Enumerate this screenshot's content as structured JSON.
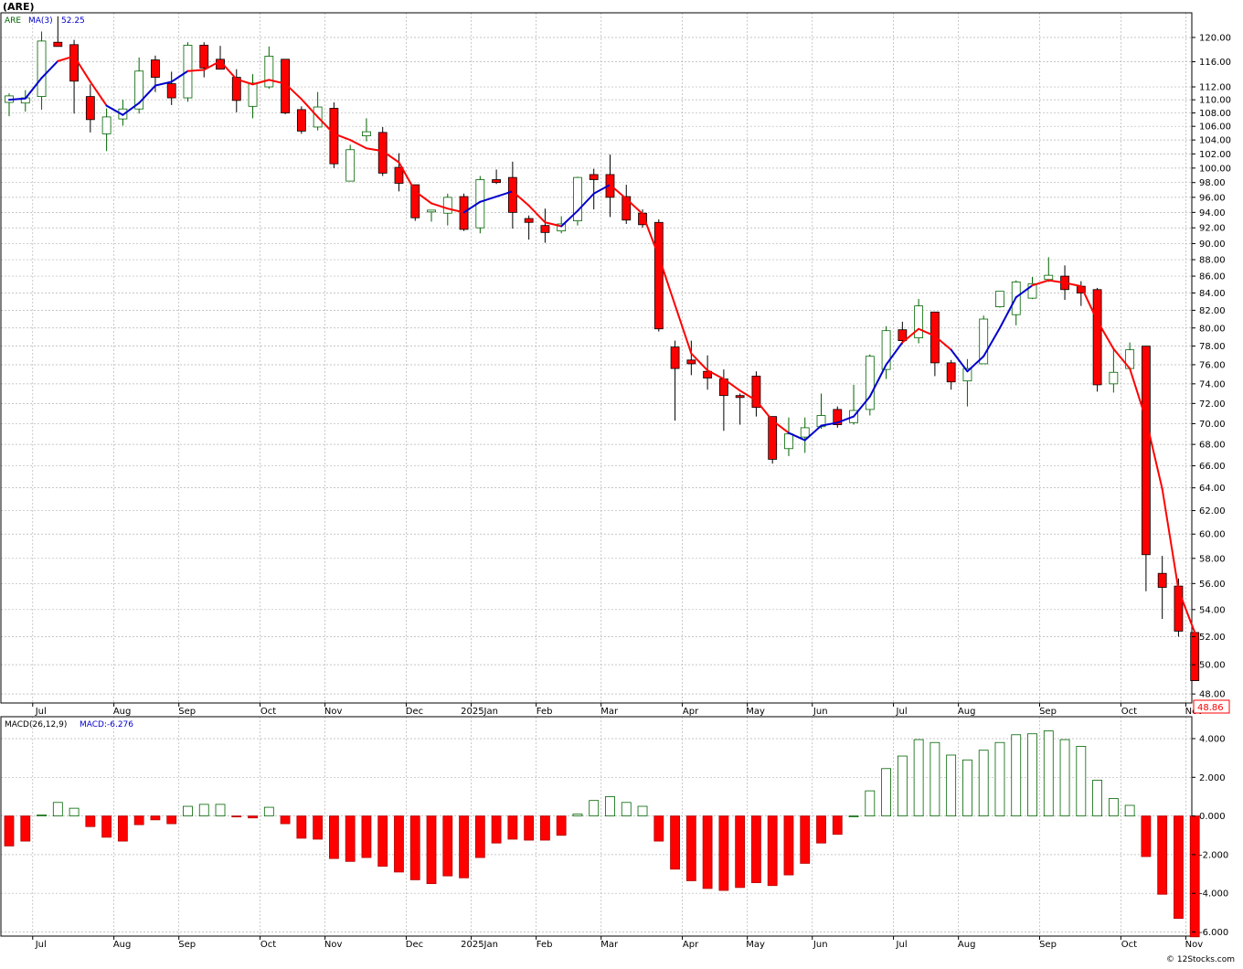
{
  "chart_title": "(ARE)",
  "legend": {
    "symbol": "ARE",
    "ma_label": "MA(3)",
    "ma_value": "52.25"
  },
  "macd_legend": {
    "label": "MACD(26,12,9)",
    "value_label": "MACD:",
    "value": "-6.276"
  },
  "last_price": "48.86",
  "copyright": "© 12Stocks.com",
  "colors": {
    "up": "#006400",
    "down": "#ff0000",
    "ma_up": "#0000cc",
    "ma_down": "#ff0000",
    "grid": "#b4b4b4"
  },
  "chart_data": [
    {
      "type": "candlestick",
      "title": "",
      "price_axis": [
        48,
        50,
        52,
        54,
        56,
        58,
        60,
        62,
        64,
        66,
        68,
        70,
        72,
        74,
        76,
        78,
        80,
        82,
        84,
        86,
        88,
        90,
        92,
        94,
        96,
        98,
        100,
        102,
        104,
        106,
        108,
        110,
        112,
        116,
        120
      ],
      "month_labels": [
        "Jul",
        "Aug",
        "Sep",
        "Oct",
        "Nov",
        "Dec",
        "2025Jan",
        "Feb",
        "Mar",
        "Apr",
        "May",
        "Jun",
        "Jul",
        "Aug",
        "Sep",
        "Oct",
        "Nov"
      ],
      "month_start_index": [
        1,
        6,
        10,
        15,
        19,
        24,
        28,
        32,
        36,
        41,
        45,
        49,
        54,
        58,
        63,
        68,
        72
      ],
      "candles": [
        {
          "o": 109.6,
          "h": 111.0,
          "l": 107.5,
          "c": 110.6
        },
        {
          "o": 109.5,
          "h": 111.5,
          "l": 108.2,
          "c": 110.3
        },
        {
          "o": 110.5,
          "h": 121.0,
          "l": 108.5,
          "c": 119.4
        },
        {
          "o": 119.2,
          "h": 123.6,
          "l": 118.6,
          "c": 118.5
        },
        {
          "o": 118.8,
          "h": 119.6,
          "l": 107.9,
          "c": 112.9
        },
        {
          "o": 110.5,
          "h": 112.4,
          "l": 105.1,
          "c": 107.0
        },
        {
          "o": 104.9,
          "h": 108.7,
          "l": 102.4,
          "c": 107.4
        },
        {
          "o": 107.1,
          "h": 110.0,
          "l": 106.1,
          "c": 108.6
        },
        {
          "o": 108.6,
          "h": 116.7,
          "l": 107.9,
          "c": 114.5
        },
        {
          "o": 116.3,
          "h": 117.0,
          "l": 111.2,
          "c": 113.5
        },
        {
          "o": 112.5,
          "h": 114.4,
          "l": 109.2,
          "c": 110.3
        },
        {
          "o": 110.3,
          "h": 119.2,
          "l": 109.7,
          "c": 118.7
        },
        {
          "o": 118.7,
          "h": 119.2,
          "l": 113.5,
          "c": 115.0
        },
        {
          "o": 116.4,
          "h": 118.6,
          "l": 114.8,
          "c": 114.8
        },
        {
          "o": 113.5,
          "h": 114.8,
          "l": 108.1,
          "c": 109.9
        },
        {
          "o": 109.0,
          "h": 114.0,
          "l": 107.2,
          "c": 112.6
        },
        {
          "o": 112.0,
          "h": 118.5,
          "l": 111.7,
          "c": 116.9
        },
        {
          "o": 116.4,
          "h": 116.3,
          "l": 107.8,
          "c": 108.0
        },
        {
          "o": 108.5,
          "h": 109.0,
          "l": 104.9,
          "c": 105.3
        },
        {
          "o": 105.9,
          "h": 111.2,
          "l": 105.4,
          "c": 108.9
        },
        {
          "o": 108.7,
          "h": 109.6,
          "l": 100.0,
          "c": 100.6
        },
        {
          "o": 98.2,
          "h": 103.3,
          "l": 98.2,
          "c": 102.6
        },
        {
          "o": 104.6,
          "h": 107.2,
          "l": 103.8,
          "c": 105.2
        },
        {
          "o": 105.1,
          "h": 105.9,
          "l": 98.9,
          "c": 99.3
        },
        {
          "o": 100.1,
          "h": 102.1,
          "l": 96.8,
          "c": 97.9
        },
        {
          "o": 97.7,
          "h": 97.5,
          "l": 92.9,
          "c": 93.3
        },
        {
          "o": 94.1,
          "h": 93.9,
          "l": 92.8,
          "c": 94.3
        },
        {
          "o": 93.9,
          "h": 96.5,
          "l": 92.3,
          "c": 96.0
        },
        {
          "o": 96.1,
          "h": 96.5,
          "l": 91.6,
          "c": 91.8
        },
        {
          "o": 92.0,
          "h": 98.9,
          "l": 91.3,
          "c": 98.4
        },
        {
          "o": 98.4,
          "h": 99.8,
          "l": 97.8,
          "c": 98.0
        },
        {
          "o": 98.7,
          "h": 100.9,
          "l": 91.9,
          "c": 94.0
        },
        {
          "o": 93.2,
          "h": 93.6,
          "l": 90.5,
          "c": 92.7
        },
        {
          "o": 92.3,
          "h": 94.5,
          "l": 90.1,
          "c": 91.4
        },
        {
          "o": 91.6,
          "h": 93.5,
          "l": 91.3,
          "c": 92.5
        },
        {
          "o": 92.9,
          "h": 98.8,
          "l": 92.3,
          "c": 98.7
        },
        {
          "o": 99.1,
          "h": 99.9,
          "l": 94.4,
          "c": 98.4
        },
        {
          "o": 99.1,
          "h": 101.9,
          "l": 93.4,
          "c": 96.0
        },
        {
          "o": 96.1,
          "h": 97.7,
          "l": 92.5,
          "c": 93.0
        },
        {
          "o": 93.9,
          "h": 94.4,
          "l": 92.0,
          "c": 92.4
        },
        {
          "o": 92.7,
          "h": 93.1,
          "l": 79.6,
          "c": 79.9
        },
        {
          "o": 77.9,
          "h": 78.6,
          "l": 70.3,
          "c": 75.6
        },
        {
          "o": 76.5,
          "h": 78.6,
          "l": 74.9,
          "c": 76.1
        },
        {
          "o": 75.3,
          "h": 77.0,
          "l": 73.4,
          "c": 74.6
        },
        {
          "o": 74.5,
          "h": 75.5,
          "l": 69.3,
          "c": 72.8
        },
        {
          "o": 72.8,
          "h": 73.0,
          "l": 69.9,
          "c": 72.6
        },
        {
          "o": 74.8,
          "h": 75.3,
          "l": 70.7,
          "c": 71.6
        },
        {
          "o": 70.7,
          "h": 70.7,
          "l": 66.2,
          "c": 66.6
        },
        {
          "o": 67.6,
          "h": 70.6,
          "l": 66.9,
          "c": 69.0
        },
        {
          "o": 68.7,
          "h": 70.6,
          "l": 67.2,
          "c": 69.6
        },
        {
          "o": 69.7,
          "h": 73.0,
          "l": 69.5,
          "c": 70.8
        },
        {
          "o": 71.4,
          "h": 71.7,
          "l": 69.6,
          "c": 69.9
        },
        {
          "o": 70.1,
          "h": 73.9,
          "l": 69.9,
          "c": 71.3
        },
        {
          "o": 71.4,
          "h": 77.1,
          "l": 70.8,
          "c": 76.9
        },
        {
          "o": 75.5,
          "h": 80.2,
          "l": 74.5,
          "c": 79.7
        },
        {
          "o": 79.8,
          "h": 80.7,
          "l": 78.2,
          "c": 78.6
        },
        {
          "o": 78.9,
          "h": 83.3,
          "l": 78.3,
          "c": 82.5
        },
        {
          "o": 81.8,
          "h": 81.7,
          "l": 74.8,
          "c": 76.2
        },
        {
          "o": 76.2,
          "h": 76.5,
          "l": 73.4,
          "c": 74.2
        },
        {
          "o": 74.3,
          "h": 76.6,
          "l": 71.7,
          "c": 75.6
        },
        {
          "o": 76.1,
          "h": 81.4,
          "l": 76.3,
          "c": 81.0
        },
        {
          "o": 82.4,
          "h": 84.2,
          "l": 82.3,
          "c": 84.2
        },
        {
          "o": 81.5,
          "h": 85.5,
          "l": 80.3,
          "c": 85.3
        },
        {
          "o": 83.4,
          "h": 85.9,
          "l": 83.3,
          "c": 85.1
        },
        {
          "o": 85.6,
          "h": 88.3,
          "l": 85.3,
          "c": 86.1
        },
        {
          "o": 86.0,
          "h": 87.3,
          "l": 83.2,
          "c": 84.4
        },
        {
          "o": 84.8,
          "h": 85.4,
          "l": 82.5,
          "c": 84.0
        },
        {
          "o": 84.4,
          "h": 84.6,
          "l": 73.2,
          "c": 73.9
        },
        {
          "o": 74.0,
          "h": 77.7,
          "l": 73.1,
          "c": 75.2
        },
        {
          "o": 75.6,
          "h": 78.4,
          "l": 75.6,
          "c": 77.6
        },
        {
          "o": 78.0,
          "h": 78.0,
          "l": 55.4,
          "c": 58.3
        },
        {
          "o": 56.8,
          "h": 58.2,
          "l": 53.3,
          "c": 55.7
        },
        {
          "o": 55.8,
          "h": 56.4,
          "l": 52.0,
          "c": 52.4
        },
        {
          "o": 52.3,
          "h": 52.4,
          "l": 48.9,
          "c": 48.9
        }
      ],
      "ma3": [
        110.0,
        110.2,
        113.4,
        116.1,
        116.9,
        112.8,
        109.1,
        107.7,
        109.5,
        112.2,
        112.8,
        114.5,
        114.7,
        116.1,
        113.2,
        112.4,
        113.1,
        112.5,
        110.1,
        107.4,
        104.9,
        104.0,
        102.8,
        102.4,
        100.8,
        96.8,
        95.2,
        94.5,
        94.0,
        95.4,
        96.1,
        96.8,
        94.9,
        92.7,
        92.2,
        94.2,
        96.5,
        97.7,
        95.8,
        93.8,
        88.4,
        82.6,
        77.2,
        75.4,
        74.5,
        73.3,
        72.3,
        70.3,
        69.1,
        68.4,
        69.8,
        70.1,
        70.7,
        72.7,
        76.0,
        78.4,
        79.9,
        79.1,
        77.6,
        75.3,
        76.9,
        80.0,
        83.5,
        84.9,
        85.5,
        85.2,
        84.8,
        80.8,
        77.7,
        75.6,
        70.4,
        63.9,
        55.5,
        52.3
      ],
      "up_ma_index": [
        0,
        1,
        2,
        3,
        6,
        7,
        8,
        9,
        10,
        11,
        28,
        29,
        30,
        31,
        34,
        35,
        36,
        37,
        48,
        49,
        50,
        51,
        52,
        53,
        54,
        55,
        58,
        59,
        60,
        61,
        62,
        63
      ],
      "macd_axis": [
        -6.0,
        -4.0,
        -2.0,
        0.0,
        2.0,
        4.0
      ],
      "macd_axis_labels": [
        "-6.000",
        "-4.000",
        "-2.000",
        "0.000",
        "2.000",
        "4.000"
      ],
      "macd": [
        -1.55,
        -1.3,
        0.05,
        0.7,
        0.4,
        -0.55,
        -1.1,
        -1.3,
        -0.45,
        -0.2,
        -0.4,
        0.5,
        0.6,
        0.6,
        -0.05,
        -0.1,
        0.45,
        -0.4,
        -1.15,
        -1.2,
        -2.2,
        -2.35,
        -2.15,
        -2.6,
        -2.9,
        -3.3,
        -3.5,
        -3.1,
        -3.2,
        -2.15,
        -1.4,
        -1.2,
        -1.25,
        -1.25,
        -1.0,
        0.1,
        0.8,
        1.0,
        0.7,
        0.5,
        -1.3,
        -2.75,
        -3.35,
        -3.75,
        -3.85,
        -3.7,
        -3.45,
        -3.6,
        -3.05,
        -2.45,
        -1.4,
        -0.95,
        0.0,
        1.3,
        2.45,
        3.1,
        3.95,
        3.8,
        3.15,
        2.9,
        3.4,
        3.8,
        4.2,
        4.25,
        4.4,
        3.95,
        3.6,
        1.85,
        0.9,
        0.55,
        -2.1,
        -4.05,
        -5.3,
        -6.25
      ]
    }
  ]
}
